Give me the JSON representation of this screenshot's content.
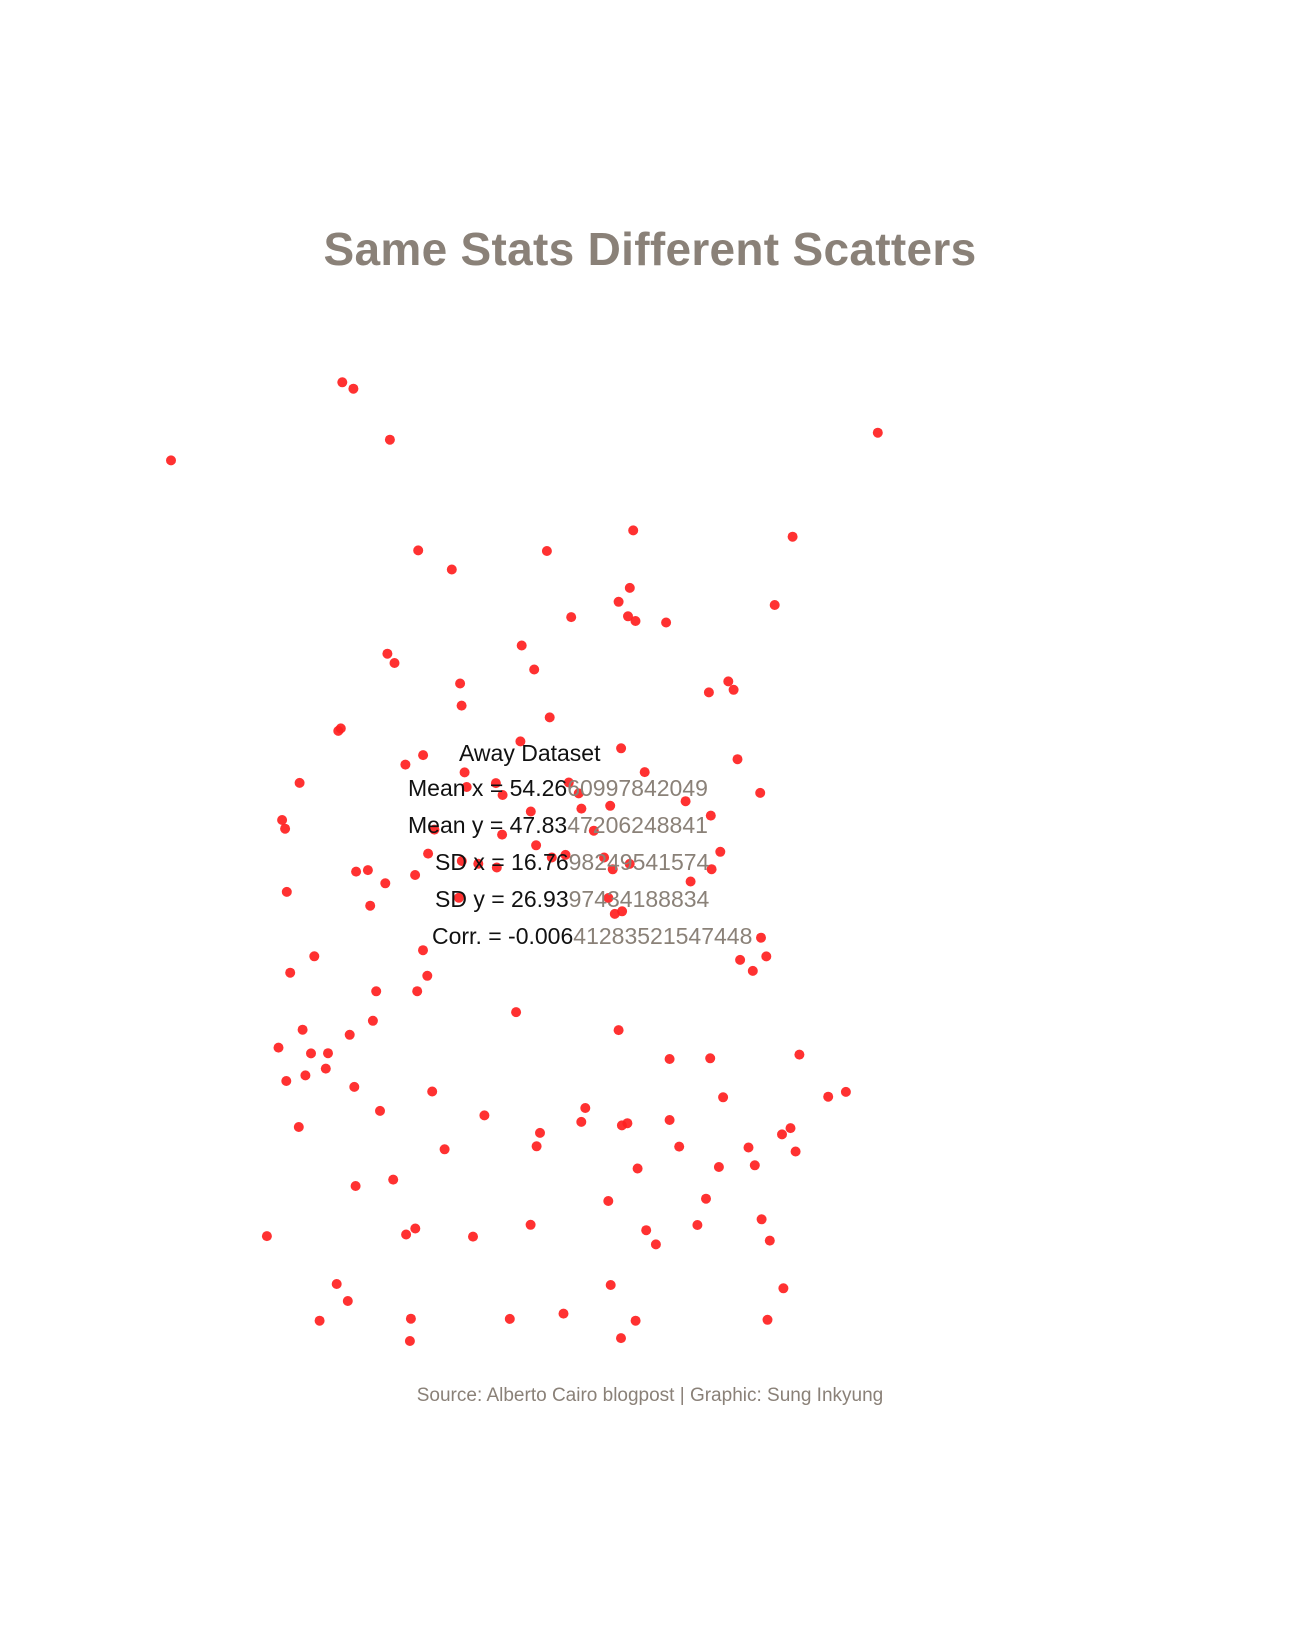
{
  "title": "Same Stats Different Scatters",
  "source": "Source: Alberto Cairo blogpost | Graphic: Sung Inkyung",
  "colors": {
    "points": "#ff2020",
    "title": "#8a8178",
    "text": "#111111"
  },
  "stats": {
    "dataset": "Away Dataset",
    "mean_x": {
      "label": "Mean x = 54.26",
      "rest": "60997842049"
    },
    "mean_y": {
      "label": "Mean y = 47.83",
      "rest": "47206248841"
    },
    "sd_x": {
      "label": "SD x = 16.76",
      "rest": "98249541574"
    },
    "sd_y": {
      "label": "SD y = 26.93",
      "rest": "97434188834"
    },
    "corr": {
      "label": "Corr. = -0.006",
      "rest": "41283521547448"
    }
  },
  "chart_data": {
    "type": "scatter",
    "title": "Same Stats Different Scatters",
    "xlabel": "",
    "ylabel": "",
    "grid": false,
    "xlim": [
      15.56,
      91.64
    ],
    "ylim": [
      0.02,
      97.48
    ],
    "x": [
      32.33,
      36.99,
      52.37,
      74.67,
      49.9,
      36.75,
      60.31,
      70.13,
      15.56,
      84.77,
      76.42,
      70.65,
      39.76,
      43.05,
      44.01,
      44.51,
      47.98,
      58.56,
      55.74,
      38.51,
      61.94,
      65.95,
      47.46,
      27.23,
      33.68,
      54.51,
      35.33,
      41.35,
      31.94,
      52.64,
      32.19,
      43.87,
      40.24,
      47.37,
      48.03,
      56.96,
      37.44,
      49.77,
      59.63,
      68.23,
      51.31,
      73.25,
      39.46,
      36.54,
      26.73,
      66.44,
      59.73,
      73.33,
      43.75,
      71.28,
      40.66,
      30.72,
      33.51,
      75.39,
      76.22,
      69.62,
      36.02,
      28.07,
      46.25,
      42.35,
      56.13,
      76.72,
      33.64,
      39.05,
      31.78,
      61.05,
      59.62,
      38.95,
      38.58,
      63.04,
      62.09,
      67.94,
      73.39,
      74.19,
      73.97,
      50.77,
      79.91,
      68.36,
      29.59,
      72.53,
      29.27,
      28.72,
      68.49,
      58.81,
      64.38,
      55.73,
      51.69,
      39.67,
      24.95,
      72.72,
      67.1,
      30.11,
      26.09,
      41.14,
      37.32,
      45.65,
      60.47,
      40.73,
      33.06,
      34.84,
      54.19,
      52.85,
      69.34,
      68.41,
      59.01,
      71.03,
      55.48,
      44.31,
      51.12,
      60.82,
      59.39,
      54.75,
      61.04,
      33.42,
      64.04,
      73.85,
      50.79,
      65.32,
      51.36,
      58.38,
      58.61,
      48.73,
      32.87,
      75.52,
      39.48,
      72.11,
      61.25,
      53.99,
      69.21,
      30.93,
      28.45,
      81.64,
      77.09,
      60.48,
      26.44,
      35.65,
      64.38,
      59.71,
      60.25,
      26.85,
      40.23,
      58.39,
      59.39,
      57.97,
      49.35,
      44.03,
      35.06,
      45.13,
      26.9,
      28.15
    ],
    "y": [
      95.17,
      89.47,
      78.42,
      73.07,
      69.05,
      68.23,
      71.94,
      65.48,
      87.42,
      90.17,
      79.84,
      64.65,
      78.48,
      76.59,
      63.08,
      55,
      50.28,
      53.14,
      52.86,
      57.23,
      56.48,
      53.59,
      47.01,
      36.57,
      46.61,
      55.45,
      31.8,
      50.77,
      60.57,
      61.91,
      60.82,
      65.27,
      58.17,
      55.39,
      54.21,
      50.67,
      67.31,
      59.53,
      58.84,
      64.39,
      49.22,
      54.42,
      46.27,
      45.45,
      50.86,
      45.62,
      42.67,
      40.05,
      44.01,
      37.84,
      36.26,
      27.05,
      25.24,
      20.52,
      21.15,
      24.21,
      22.86,
      21.26,
      22.41,
      19.05,
      23.14,
      18.83,
      15.4,
      2.23,
      5.68,
      2.03,
      0.31,
      0.02,
      10.59,
      9.61,
      11.02,
      14.14,
      12.1,
      9.98,
      2.12,
      11.55,
      24.27,
      28.08,
      38.2,
      36.75,
      28.56,
      26.38,
      46.84,
      46.83,
      21.95,
      21.76,
      20.67,
      34.74,
      10.43,
      17.46,
      11.53,
      2.03,
      29.14,
      24.78,
      16.04,
      47.39,
      47.37,
      48.39,
      30.41,
      46.76,
      48.26,
      48.01,
      48.57,
      52.16,
      42.41,
      57.76,
      54.37,
      56.45,
      66.66,
      80.47,
      73.38,
      71.86,
      71.48,
      94.53,
      71.33,
      38.19,
      52.57,
      19.31,
      19.34,
      13.91,
      5.58,
      2.21,
      3.99,
      5.25,
      11.19,
      19.22,
      17.14,
      2.74,
      17.29,
      28.58,
      30.92,
      24.74,
      28.44,
      74.76,
      51.73,
      34.73,
      28.01,
      21.42,
      21.64,
      25.82,
      38.81,
      43.99,
      30.88,
      48.01,
      32.66,
      47.66,
      43.22,
      10.38,
      44.59,
      55.41
    ]
  }
}
